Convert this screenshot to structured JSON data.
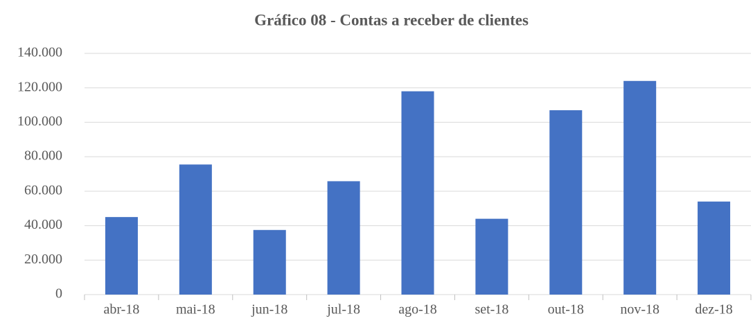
{
  "chart_data": {
    "type": "bar",
    "title": "Gráfico 08 - Contas a receber de clientes",
    "categories": [
      "abr-18",
      "mai-18",
      "jun-18",
      "jul-18",
      "ago-18",
      "set-18",
      "out-18",
      "nov-18",
      "dez-18"
    ],
    "values": [
      45000,
      75500,
      37500,
      65800,
      118000,
      44000,
      107000,
      124000,
      54000
    ],
    "color": "#4472c4",
    "ylim": [
      0,
      140000
    ],
    "yticks": [
      0,
      {
        "value": 20000,
        "label": "20.000"
      },
      {
        "value": 40000,
        "label": "40.000"
      },
      {
        "value": 60000,
        "label": "60.000"
      },
      {
        "value": 80000,
        "label": "80.000"
      },
      {
        "value": 100000,
        "label": "100.000"
      },
      {
        "value": 120000,
        "label": "120.000"
      },
      {
        "value": 140000,
        "label": "140.000"
      }
    ],
    "grid": true
  }
}
